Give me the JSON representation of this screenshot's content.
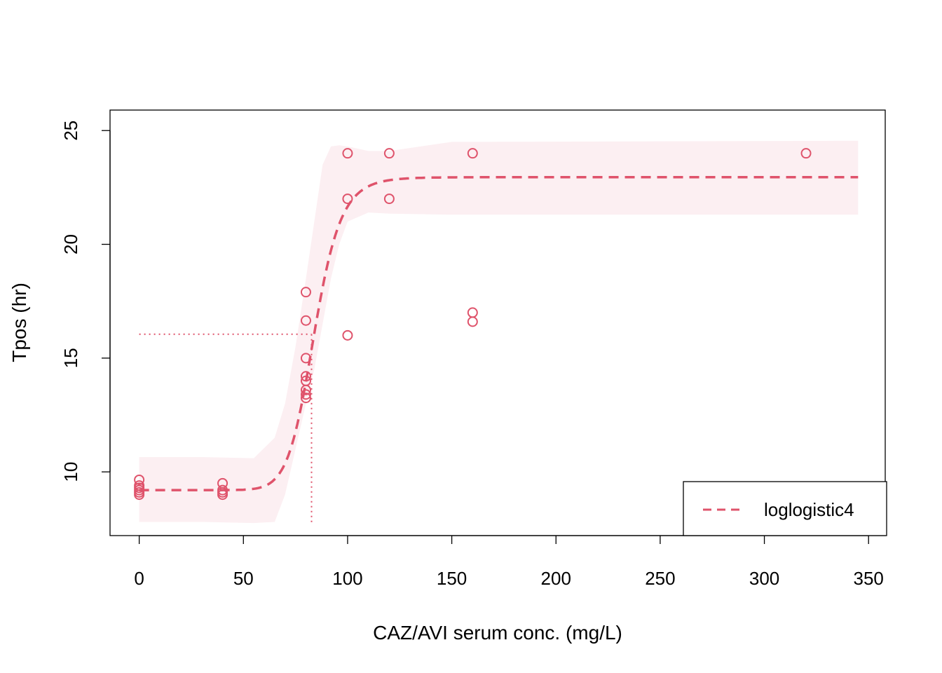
{
  "chart_data": {
    "type": "scatter",
    "title": "",
    "xlabel": "CAZ/AVI serum conc. (mg/L)",
    "ylabel": "Tpos (hr)",
    "xlim": [
      -14,
      358
    ],
    "ylim": [
      7.2,
      25.9
    ],
    "x_ticks": [
      0,
      50,
      100,
      150,
      200,
      250,
      300,
      350
    ],
    "y_ticks": [
      10,
      15,
      20,
      25
    ],
    "grid": false,
    "legend": {
      "position": "bottom-right",
      "entries": [
        "loglogistic4"
      ]
    },
    "color": "#DF536B",
    "band_color": "#FCEFF2",
    "points": [
      {
        "x": 0,
        "y": 9.65
      },
      {
        "x": 0,
        "y": 9.4
      },
      {
        "x": 0,
        "y": 9.3
      },
      {
        "x": 0,
        "y": 9.2
      },
      {
        "x": 0,
        "y": 9.1
      },
      {
        "x": 0,
        "y": 9.0
      },
      {
        "x": 40,
        "y": 9.5
      },
      {
        "x": 40,
        "y": 9.2
      },
      {
        "x": 40,
        "y": 9.1
      },
      {
        "x": 40,
        "y": 9.0
      },
      {
        "x": 80,
        "y": 17.9
      },
      {
        "x": 80,
        "y": 16.65
      },
      {
        "x": 80,
        "y": 15.0
      },
      {
        "x": 80,
        "y": 14.2
      },
      {
        "x": 80,
        "y": 14.0
      },
      {
        "x": 80,
        "y": 13.6
      },
      {
        "x": 80,
        "y": 13.4
      },
      {
        "x": 80,
        "y": 13.25
      },
      {
        "x": 100,
        "y": 24.0
      },
      {
        "x": 100,
        "y": 22.0
      },
      {
        "x": 100,
        "y": 16.0
      },
      {
        "x": 120,
        "y": 24.0
      },
      {
        "x": 120,
        "y": 22.0
      },
      {
        "x": 160,
        "y": 24.0
      },
      {
        "x": 160,
        "y": 17.0
      },
      {
        "x": 160,
        "y": 16.6
      },
      {
        "x": 320,
        "y": 24.0
      }
    ],
    "fit": {
      "name": "loglogistic4",
      "lower": 9.2,
      "upper": 22.95,
      "ec50": 84,
      "hill": 13,
      "x_range": [
        0,
        345
      ]
    },
    "band": {
      "x": [
        0,
        30,
        55,
        65,
        70,
        75,
        80,
        84,
        88,
        92,
        96,
        100,
        110,
        120,
        150,
        345
      ],
      "lower": [
        7.8,
        7.8,
        7.75,
        7.8,
        9.0,
        11.0,
        13.0,
        14.5,
        16.5,
        18.5,
        20.0,
        21.0,
        21.4,
        21.35,
        21.3,
        21.3
      ],
      "upper": [
        10.65,
        10.65,
        10.6,
        11.5,
        13.0,
        15.5,
        18.5,
        21.0,
        23.5,
        24.3,
        24.35,
        24.3,
        24.1,
        24.1,
        24.5,
        24.55
      ]
    },
    "reference": {
      "x": 82.7,
      "y": 16.05
    }
  }
}
